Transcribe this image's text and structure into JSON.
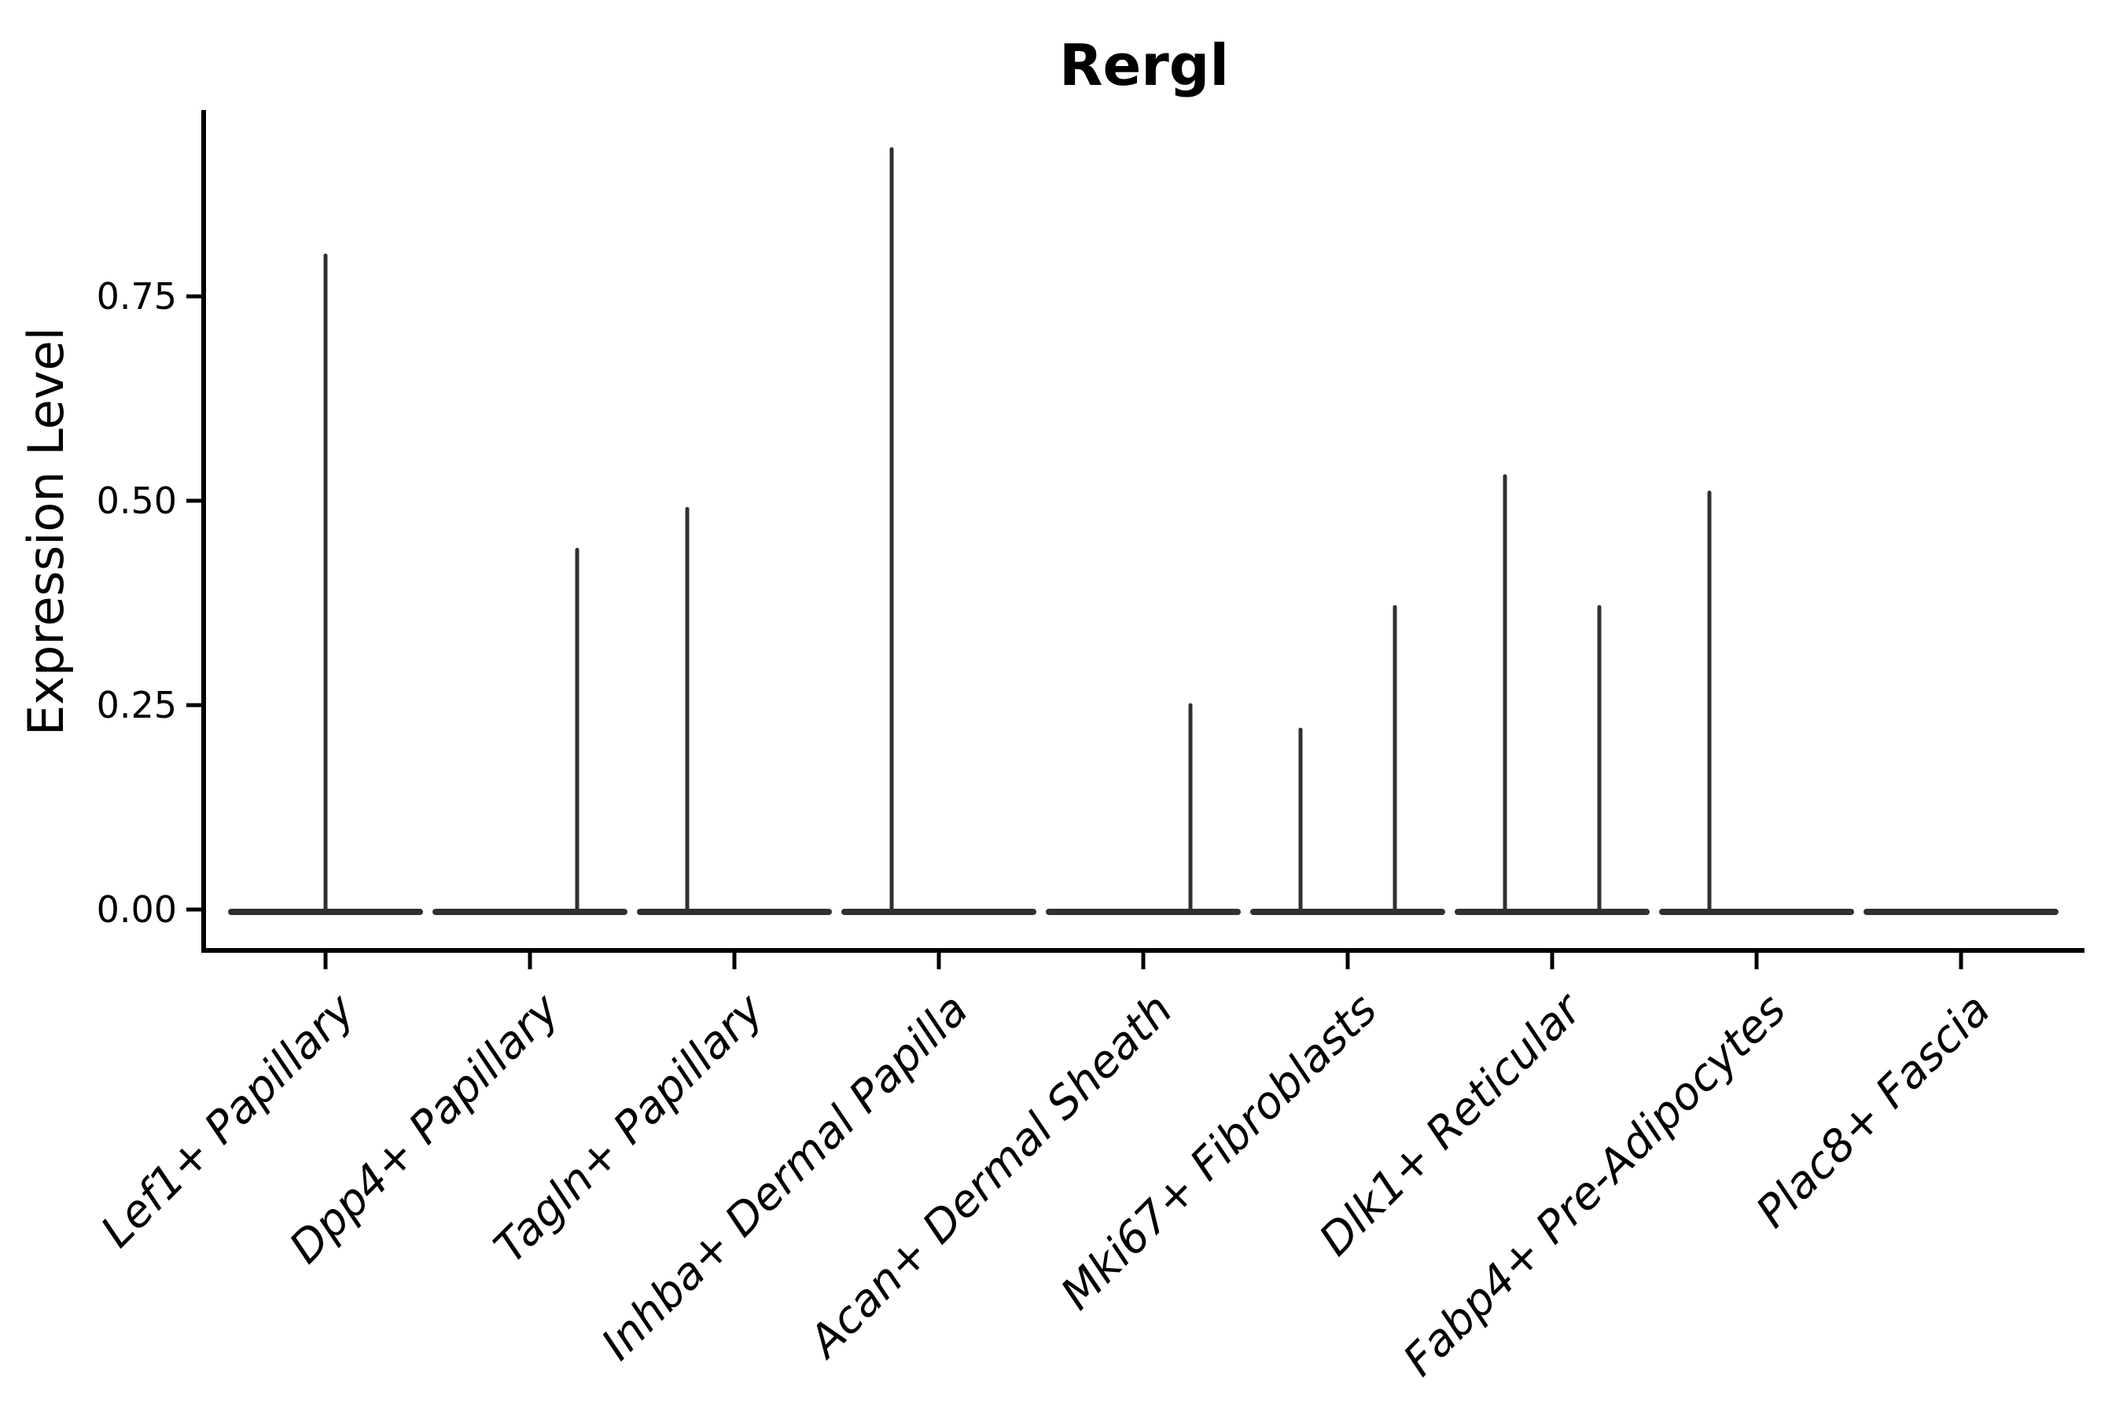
{
  "chart_data": {
    "type": "violin",
    "title": "Rergl",
    "xlabel": "",
    "ylabel": "Expression Level",
    "grid": false,
    "legend_position": "none",
    "ylim": [
      0,
      0.98
    ],
    "y_ticks": [
      {
        "value": 0.0,
        "label": "0.00"
      },
      {
        "value": 0.25,
        "label": "0.25"
      },
      {
        "value": 0.5,
        "label": "0.50"
      },
      {
        "value": 0.75,
        "label": "0.75"
      }
    ],
    "categories": [
      "Lef1+ Papillary",
      "Dpp4+ Papillary",
      "Tagln+ Papillary",
      "Inhba+ Dermal Papilla",
      "Acan+ Dermal Sheath",
      "Mki67+ Fibroblasts",
      "Dlk1+ Reticular",
      "Fabp4+ Pre-Adipocytes",
      "Plac8+ Fascia"
    ],
    "violins": [
      {
        "category": "Lef1+ Papillary",
        "baseline_value": 0,
        "spikes": [
          {
            "position": "center",
            "max": 0.8
          }
        ]
      },
      {
        "category": "Dpp4+ Papillary",
        "baseline_value": 0,
        "spikes": [
          {
            "position": "right",
            "max": 0.44
          }
        ]
      },
      {
        "category": "Tagln+ Papillary",
        "baseline_value": 0,
        "spikes": [
          {
            "position": "left",
            "max": 0.49
          }
        ]
      },
      {
        "category": "Inhba+ Dermal Papilla",
        "baseline_value": 0,
        "spikes": [
          {
            "position": "left",
            "max": 0.93
          }
        ]
      },
      {
        "category": "Acan+ Dermal Sheath",
        "baseline_value": 0,
        "spikes": [
          {
            "position": "right",
            "max": 0.25
          }
        ]
      },
      {
        "category": "Mki67+ Fibroblasts",
        "baseline_value": 0,
        "spikes": [
          {
            "position": "left",
            "max": 0.22
          },
          {
            "position": "right",
            "max": 0.37
          }
        ]
      },
      {
        "category": "Dlk1+ Reticular",
        "baseline_value": 0,
        "spikes": [
          {
            "position": "left",
            "max": 0.53
          },
          {
            "position": "right",
            "max": 0.37
          }
        ]
      },
      {
        "category": "Fabp4+ Pre-Adipocytes",
        "baseline_value": 0,
        "spikes": [
          {
            "position": "left",
            "max": 0.51
          }
        ]
      },
      {
        "category": "Plac8+ Fascia",
        "baseline_value": 0,
        "spikes": []
      }
    ],
    "colors": {
      "violin_stroke": "#303030",
      "axis": "#000000",
      "text": "#000000",
      "background": "#ffffff"
    }
  }
}
